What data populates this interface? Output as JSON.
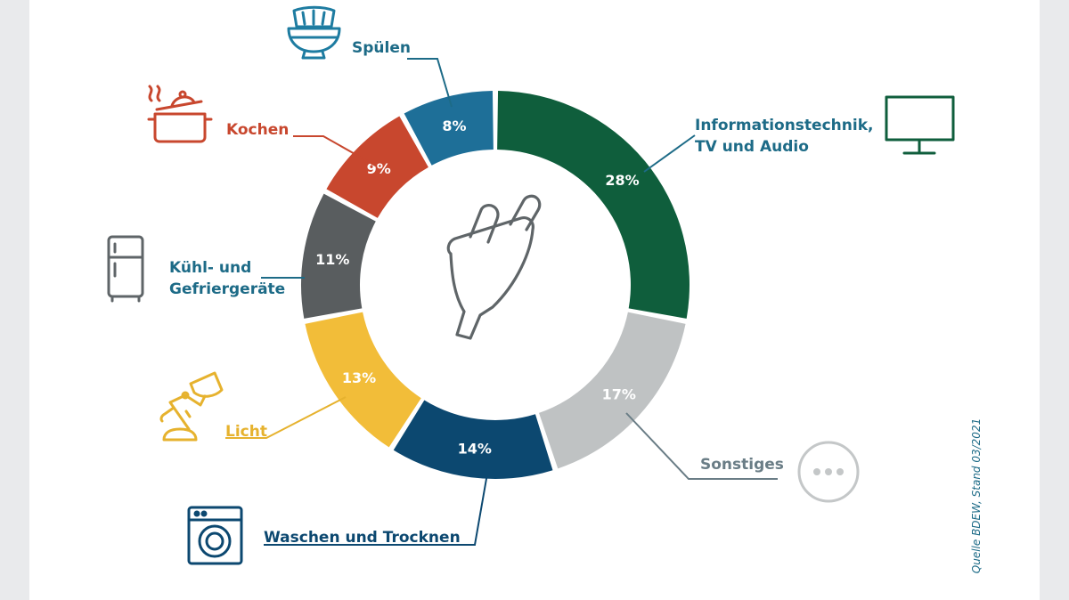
{
  "colors": {
    "text_teal": "#1d6b87",
    "text_red": "#c8472e",
    "text_yellow": "#e6b22e",
    "text_green": "#0f5e3c",
    "text_gray": "#6a7d86",
    "text_navy": "#0c4870",
    "icon_blue": "#1e7ca1",
    "icon_gray": "#5f6568",
    "icon_light": "#c4c7c8"
  },
  "center_icon": "plug-icon",
  "source_note": "Quelle BDEW, Stand 03/2021",
  "chart_data": {
    "type": "pie",
    "variant": "donut",
    "unit": "%",
    "slices": [
      {
        "key": "it",
        "lines": [
          "Informationstechnik,",
          "TV und Audio"
        ],
        "value": 28,
        "label": "28%",
        "color": "#0f5e3c",
        "icon": "tv-icon"
      },
      {
        "key": "sonstiges",
        "lines": [
          "Sonstiges"
        ],
        "value": 17,
        "label": "17%",
        "color": "#bfc2c3",
        "icon": "more-icon"
      },
      {
        "key": "waschen",
        "lines": [
          "Waschen und Trocknen"
        ],
        "value": 14,
        "label": "14%",
        "color": "#0c4870",
        "icon": "washing-machine-icon"
      },
      {
        "key": "licht",
        "lines": [
          "Licht"
        ],
        "value": 13,
        "label": "13%",
        "color": "#f2bd39",
        "icon": "lamp-icon"
      },
      {
        "key": "kuehl",
        "lines": [
          "Kühl- und",
          "Gefriergeräte"
        ],
        "value": 11,
        "label": "11%",
        "color": "#595d5f",
        "icon": "fridge-icon"
      },
      {
        "key": "kochen",
        "lines": [
          "Kochen"
        ],
        "value": 9,
        "label": "9%",
        "color": "#c8472e",
        "icon": "pot-icon"
      },
      {
        "key": "spuelen",
        "lines": [
          "Spülen"
        ],
        "value": 8,
        "label": "8%",
        "color": "#1e6f98",
        "icon": "dishes-icon"
      }
    ]
  }
}
